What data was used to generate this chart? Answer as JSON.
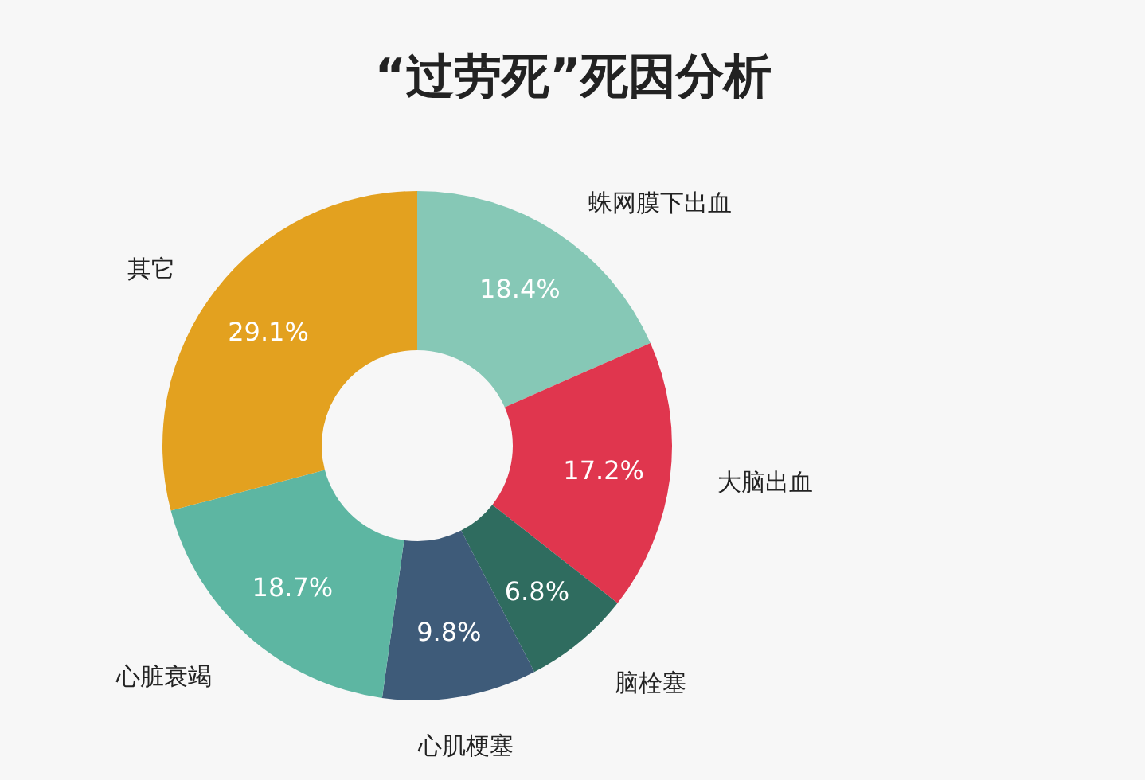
{
  "chart_data": {
    "type": "donut",
    "title": "“过劳死”死因分析",
    "categories": [
      "蛛网膜下出血",
      "大脑出血",
      "脑栓塞",
      "心肌梗塞",
      "心脏衰竭",
      "其它"
    ],
    "values": [
      18.4,
      17.2,
      6.8,
      9.8,
      18.7,
      29.1
    ],
    "colors": [
      "#86c8b6",
      "#e0364e",
      "#2f6c5f",
      "#3e5b79",
      "#5db6a2",
      "#e3a11f"
    ],
    "value_labels": [
      "18.4%",
      "17.2%",
      "6.8%",
      "9.8%",
      "18.7%",
      "29.1%"
    ],
    "legend": false
  }
}
